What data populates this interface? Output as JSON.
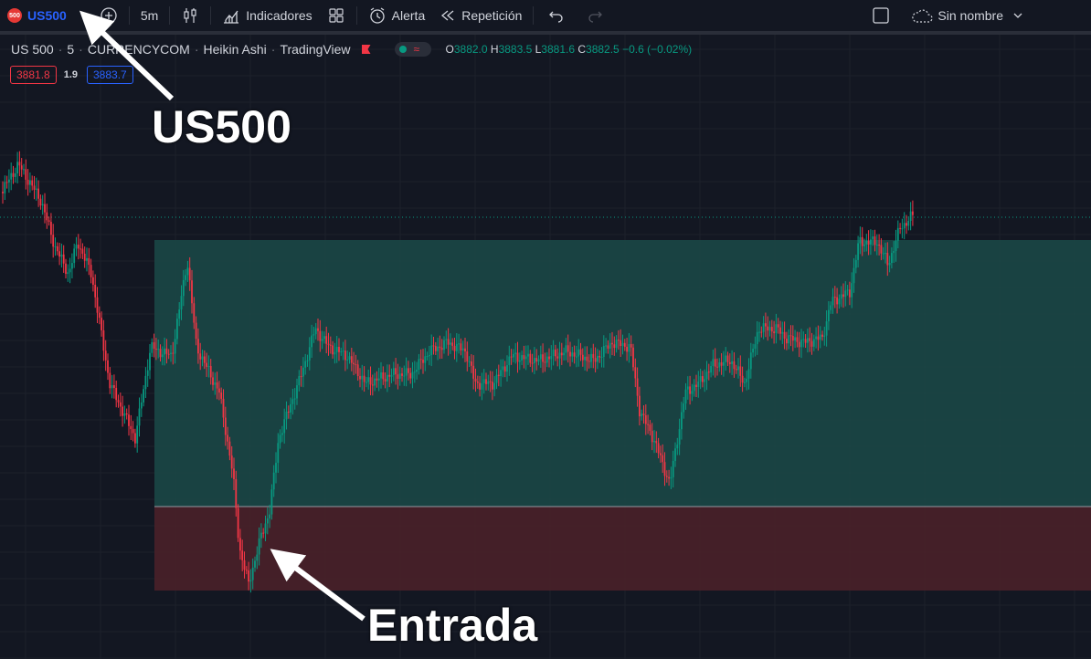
{
  "toolbar": {
    "symbol_badge": "500",
    "symbol": "US500",
    "interval": "5m",
    "indicators": "Indicadores",
    "alert": "Alerta",
    "replay": "Repetición",
    "layout_name": "Sin nombre"
  },
  "legend": {
    "title": "US 500",
    "interval": "5",
    "exchange": "CURRENCYCOM",
    "chart_type": "Heikin Ashi",
    "source": "TradingView",
    "wave": "≈",
    "o_label": "O",
    "o": "3882.0",
    "h_label": "H",
    "h": "3883.5",
    "l_label": "L",
    "l": "3881.6",
    "c_label": "C",
    "c": "3882.5",
    "change": "−0.6 (−0.02%)"
  },
  "prices": {
    "sell": "3881.8",
    "spread": "1.9",
    "buy": "3883.7"
  },
  "annotations": {
    "symbol_note": "US500",
    "entry_note": "Entrada"
  },
  "colors": {
    "up": "#089981",
    "down": "#f23645",
    "profit_zone": "#1b4a48",
    "loss_zone": "#4a2029",
    "accent": "#2962ff"
  }
}
